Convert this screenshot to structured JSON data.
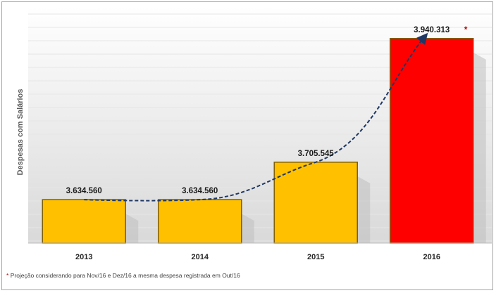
{
  "chart_data": {
    "type": "bar",
    "title": "",
    "xlabel": "",
    "ylabel": "Despesas com Salários",
    "categories": [
      "2013",
      "2014",
      "2015",
      "2016"
    ],
    "values": [
      3634560,
      3634560,
      3705545,
      3940313
    ],
    "data_labels": [
      "3.634.560",
      "3.634.560",
      "3.705.545",
      "3.940.313"
    ],
    "bar_colors": [
      "#FFC000",
      "#FFC000",
      "#FFC000",
      "#FF0000"
    ],
    "highlight_marker": {
      "index": 3,
      "symbol": "*",
      "color": "#C00000"
    },
    "trendline": {
      "style": "dashed",
      "color": "#1F3864",
      "arrow": true
    },
    "ylim": [
      3550000,
      3960000
    ],
    "grid": true,
    "legend": "none"
  },
  "footnote": {
    "marker": "*",
    "text": "Projeção considerando para Nov/16 e Dez/16 a mesma despesa registrada em Out/16"
  }
}
